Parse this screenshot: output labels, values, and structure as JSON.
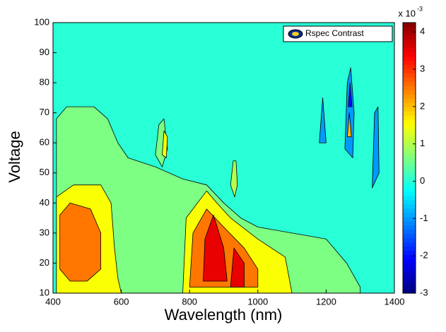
{
  "chart_data": {
    "type": "contour",
    "xlabel": "Wavelength (nm)",
    "ylabel": "Voltage",
    "xlim": [
      400,
      1400
    ],
    "xticks": [
      400,
      600,
      800,
      1000,
      1200,
      1400
    ],
    "ylim": [
      10,
      100
    ],
    "yticks": [
      10,
      20,
      30,
      40,
      50,
      60,
      70,
      80,
      90,
      100
    ],
    "clim": [
      -3,
      4.25
    ],
    "cticks": [
      -3,
      -2,
      -1,
      0,
      1,
      2,
      3,
      4
    ],
    "colorbar_multiplier": "x 10",
    "colorbar_exponent": "-3",
    "colormap": "jet",
    "background_level": 0,
    "legend": "Rspec Contrast",
    "legend_position": "upper right",
    "regions": [
      {
        "level": 0.6,
        "points": [
          [
            410,
            10
          ],
          [
            410,
            68
          ],
          [
            440,
            72
          ],
          [
            520,
            72
          ],
          [
            560,
            68
          ],
          [
            590,
            60
          ],
          [
            620,
            55
          ],
          [
            700,
            52
          ],
          [
            780,
            48
          ],
          [
            850,
            46
          ],
          [
            900,
            40
          ],
          [
            950,
            35
          ],
          [
            1000,
            32
          ],
          [
            1100,
            30
          ],
          [
            1200,
            28
          ],
          [
            1260,
            20
          ],
          [
            1300,
            12
          ],
          [
            1300,
            10
          ]
        ]
      },
      {
        "level": 0.6,
        "points": [
          [
            700,
            56
          ],
          [
            710,
            66
          ],
          [
            725,
            68
          ],
          [
            735,
            58
          ],
          [
            720,
            52
          ]
        ]
      },
      {
        "level": 1.5,
        "points": [
          [
            410,
            10
          ],
          [
            410,
            42
          ],
          [
            460,
            46
          ],
          [
            540,
            46
          ],
          [
            570,
            40
          ],
          [
            580,
            25
          ],
          [
            590,
            15
          ],
          [
            600,
            10
          ]
        ]
      },
      {
        "level": 1.5,
        "points": [
          [
            780,
            10
          ],
          [
            790,
            35
          ],
          [
            850,
            44
          ],
          [
            880,
            40
          ],
          [
            920,
            35
          ],
          [
            1000,
            28
          ],
          [
            1080,
            22
          ],
          [
            1100,
            10
          ]
        ]
      },
      {
        "level": 1.5,
        "points": [
          [
            720,
            56
          ],
          [
            725,
            64
          ],
          [
            735,
            62
          ],
          [
            732,
            55
          ]
        ]
      },
      {
        "level": 2.5,
        "points": [
          [
            420,
            18
          ],
          [
            420,
            36
          ],
          [
            450,
            40
          ],
          [
            510,
            38
          ],
          [
            540,
            30
          ],
          [
            540,
            18
          ],
          [
            500,
            14
          ],
          [
            450,
            14
          ]
        ]
      },
      {
        "level": 2.5,
        "points": [
          [
            800,
            12
          ],
          [
            810,
            30
          ],
          [
            850,
            38
          ],
          [
            900,
            32
          ],
          [
            960,
            25
          ],
          [
            1000,
            18
          ],
          [
            1000,
            12
          ]
        ]
      },
      {
        "level": 3.5,
        "points": [
          [
            840,
            14
          ],
          [
            845,
            28
          ],
          [
            870,
            36
          ],
          [
            900,
            25
          ],
          [
            910,
            14
          ]
        ]
      },
      {
        "level": 3.5,
        "points": [
          [
            920,
            12
          ],
          [
            930,
            25
          ],
          [
            960,
            20
          ],
          [
            960,
            12
          ]
        ]
      },
      {
        "level": 1,
        "points": [
          [
            920,
            46
          ],
          [
            928,
            54
          ],
          [
            936,
            54
          ],
          [
            940,
            46
          ],
          [
            932,
            42
          ]
        ]
      },
      {
        "level": -1,
        "points": [
          [
            1255,
            58
          ],
          [
            1262,
            80
          ],
          [
            1272,
            85
          ],
          [
            1282,
            70
          ],
          [
            1278,
            55
          ]
        ]
      },
      {
        "level": -1,
        "points": [
          [
            1335,
            45
          ],
          [
            1342,
            70
          ],
          [
            1352,
            72
          ],
          [
            1355,
            50
          ]
        ]
      },
      {
        "level": -1,
        "points": [
          [
            1180,
            60
          ],
          [
            1190,
            75
          ],
          [
            1200,
            60
          ]
        ]
      },
      {
        "level": -2,
        "points": [
          [
            1265,
            72
          ],
          [
            1270,
            80
          ],
          [
            1276,
            72
          ]
        ]
      },
      {
        "level": 2,
        "points": [
          [
            1262,
            62
          ],
          [
            1268,
            70
          ],
          [
            1274,
            62
          ]
        ]
      }
    ]
  }
}
